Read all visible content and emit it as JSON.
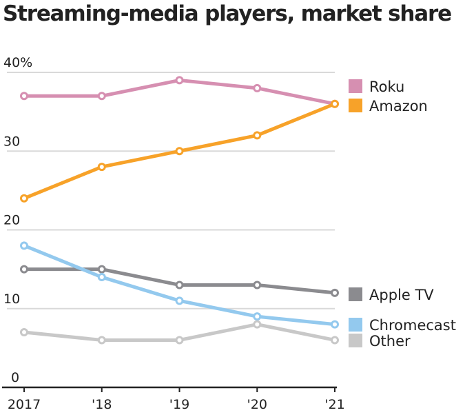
{
  "chart_data": {
    "type": "line",
    "title": "Streaming-media players, market share",
    "xlabel": "",
    "ylabel": "",
    "x": [
      "2017",
      "'18",
      "'19",
      "'20",
      "'21"
    ],
    "ylim": [
      0,
      40
    ],
    "yticks": [
      0,
      10,
      20,
      30,
      40
    ],
    "ytick_labels": [
      "0",
      "10",
      "20",
      "30",
      "40%"
    ],
    "grid": true,
    "legend_position": "right (labels at line ends)",
    "series": [
      {
        "name": "Roku",
        "color": "#d68fb1",
        "values": [
          37,
          37,
          39,
          38,
          36
        ]
      },
      {
        "name": "Amazon",
        "color": "#f7a229",
        "values": [
          24,
          28,
          30,
          32,
          36
        ]
      },
      {
        "name": "Apple TV",
        "color": "#8b8b8f",
        "values": [
          15,
          15,
          13,
          13,
          12
        ]
      },
      {
        "name": "Chromecast",
        "color": "#93c9ee",
        "values": [
          18,
          14,
          11,
          9,
          8
        ]
      },
      {
        "name": "Other",
        "color": "#c8c8c8",
        "values": [
          7,
          6,
          6,
          8,
          6
        ]
      }
    ]
  }
}
